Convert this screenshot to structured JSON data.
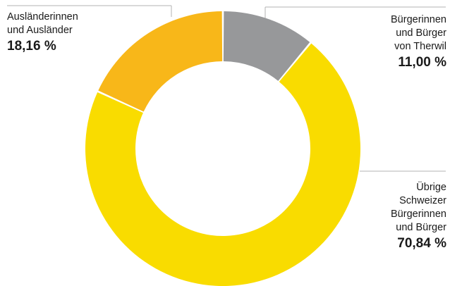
{
  "chart_data": {
    "type": "pie",
    "donut": true,
    "slices": [
      {
        "name": "Bürgerinnen und Bürger von Therwil",
        "value": 11.0,
        "display": "11,00 %",
        "color": "#97989a"
      },
      {
        "name": "Übrige Schweizer Bürgerinnen und Bürger",
        "value": 70.84,
        "display": "70,84 %",
        "color": "#f9dc00"
      },
      {
        "name": "Ausländerinnen und Ausländer",
        "value": 18.16,
        "display": "18,16 %",
        "color": "#f8b719"
      }
    ],
    "labels": {
      "therwil": {
        "lines": "Bürgerinnen\nund Bürger\nvon Therwil",
        "value": "11,00 %"
      },
      "schweizer": {
        "lines": "Übrige\nSchweizer\nBürgerinnen\nund Bürger",
        "value": "70,84 %"
      },
      "auslaender": {
        "lines": "Ausländerinnen\nund Ausländer",
        "value": "18,16 %"
      }
    },
    "legend": "callouts"
  }
}
